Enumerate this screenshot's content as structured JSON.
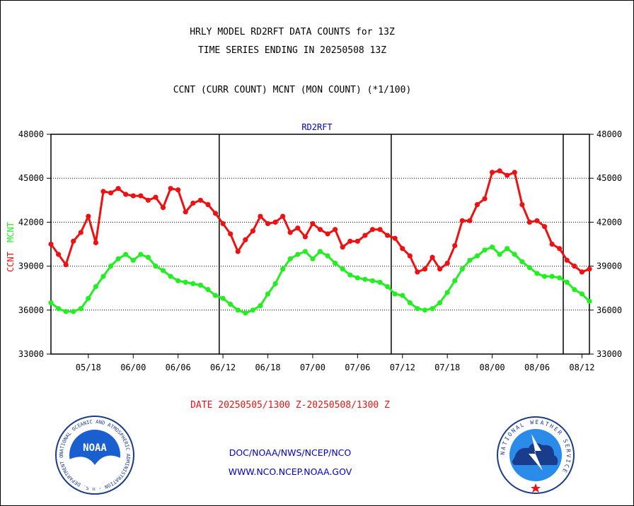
{
  "header": {
    "line1": "HRLY MODEL RD2RFT DATA COUNTS for 13Z",
    "line2": "TIME SERIES ENDING IN 20250508 13Z",
    "line3": "CCNT (CURR COUNT) MCNT (MON COUNT) (*1/100)"
  },
  "footer": {
    "date_range": "DATE 20250505/1300 Z-20250508/1300 Z",
    "org": "DOC/NOAA/NWS/NCEP/NCO",
    "url": "WWW.NCO.NCEP.NOAA.GOV",
    "noaa_logo_text": "NOAA",
    "noaa_ring_text": "NATIONAL OCEANIC AND ATMOSPHERIC ADMINISTRATION · U.S. DEPARTMENT OF COMMERCE",
    "nws_ring_text": "NATIONAL WEATHER SERVICE"
  },
  "colors": {
    "ccnt": "#ee1111",
    "mcnt": "#22ee22",
    "label_blue": "#0000cc",
    "grid": "#000000"
  },
  "chart_data": {
    "type": "line",
    "title": "RD2RFT",
    "ylabel_ccnt": "CCNT",
    "ylabel_mcnt": "MCNT",
    "ylim": [
      33000,
      48000
    ],
    "xlim": [
      0,
      72
    ],
    "yticks": [
      33000,
      36000,
      39000,
      42000,
      45000,
      48000
    ],
    "xtick_labels": [
      {
        "x": 5,
        "label": "05/18"
      },
      {
        "x": 11,
        "label": "06/00"
      },
      {
        "x": 17,
        "label": "06/06"
      },
      {
        "x": 23,
        "label": "06/12"
      },
      {
        "x": 29,
        "label": "06/18"
      },
      {
        "x": 35,
        "label": "07/00"
      },
      {
        "x": 41,
        "label": "07/06"
      },
      {
        "x": 47,
        "label": "07/12"
      },
      {
        "x": 53,
        "label": "07/18"
      },
      {
        "x": 59,
        "label": "08/00"
      },
      {
        "x": 65,
        "label": "08/06"
      },
      {
        "x": 71,
        "label": "08/12"
      }
    ],
    "day_lines": [
      22.5,
      45.5,
      68.5
    ],
    "grid": true,
    "series": [
      {
        "name": "CCNT",
        "values": [
          40500,
          39800,
          39100,
          40700,
          41300,
          42400,
          40600,
          44100,
          44000,
          44300,
          43900,
          43800,
          43800,
          43500,
          43700,
          43000,
          44300,
          44200,
          42700,
          43300,
          43500,
          43200,
          42600,
          41900,
          41200,
          40000,
          40800,
          41400,
          42400,
          41900,
          42000,
          42400,
          41300,
          41600,
          41000,
          41900,
          41500,
          41200,
          41500,
          40300,
          40700,
          40700,
          41100,
          41500,
          41500,
          41100,
          40900,
          40200,
          39700,
          38600,
          38800,
          39600,
          38800,
          39200,
          40400,
          42100,
          42100,
          43200,
          43600,
          45400,
          45500,
          45200,
          45400,
          43200,
          42000,
          42100,
          41700,
          40500,
          40200,
          39400,
          39000,
          38600,
          38800
        ]
      },
      {
        "name": "MCNT",
        "values": [
          36500,
          36100,
          35900,
          35900,
          36100,
          36800,
          37600,
          38300,
          39000,
          39500,
          39800,
          39400,
          39800,
          39600,
          39000,
          38700,
          38300,
          38000,
          37900,
          37800,
          37700,
          37400,
          37000,
          36800,
          36400,
          36000,
          35800,
          36000,
          36300,
          37100,
          37800,
          38800,
          39500,
          39800,
          40000,
          39500,
          40000,
          39700,
          39200,
          38800,
          38400,
          38200,
          38100,
          38000,
          37900,
          37600,
          37100,
          37000,
          36500,
          36100,
          36000,
          36100,
          36500,
          37200,
          38000,
          38800,
          39400,
          39700,
          40100,
          40300,
          39800,
          40200,
          39800,
          39300,
          38900,
          38500,
          38300,
          38300,
          38200,
          37900,
          37400,
          37100,
          36600
        ]
      }
    ]
  }
}
